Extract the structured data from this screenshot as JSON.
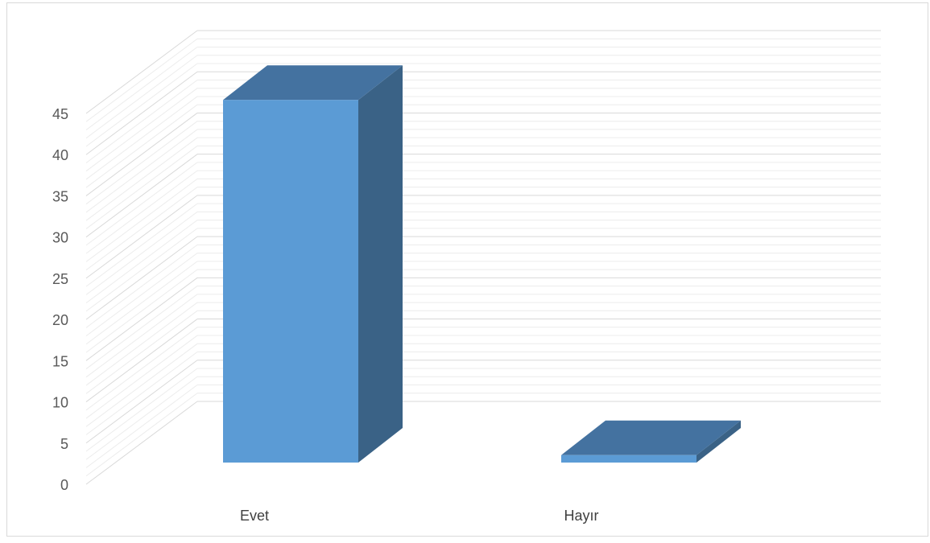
{
  "chart_data": {
    "type": "bar",
    "variant": "3d-column",
    "categories": [
      "Evet",
      "Hayır"
    ],
    "values": [
      44,
      0.9
    ],
    "ylim": [
      0,
      45
    ],
    "ytick_step": 5,
    "yticks": [
      "0",
      "5",
      "10",
      "15",
      "20",
      "25",
      "30",
      "35",
      "40",
      "45"
    ],
    "minor_grid_step": 1,
    "grid": true,
    "legend": "none",
    "title": "",
    "xlabel": "",
    "ylabel": "",
    "colors": {
      "bar_front": "#5b9bd5",
      "bar_top": "#4472a0",
      "bar_side": "#3a6286",
      "grid_major": "#d9d9d9",
      "grid_minor": "#ececec",
      "tick_text": "#595959"
    }
  }
}
